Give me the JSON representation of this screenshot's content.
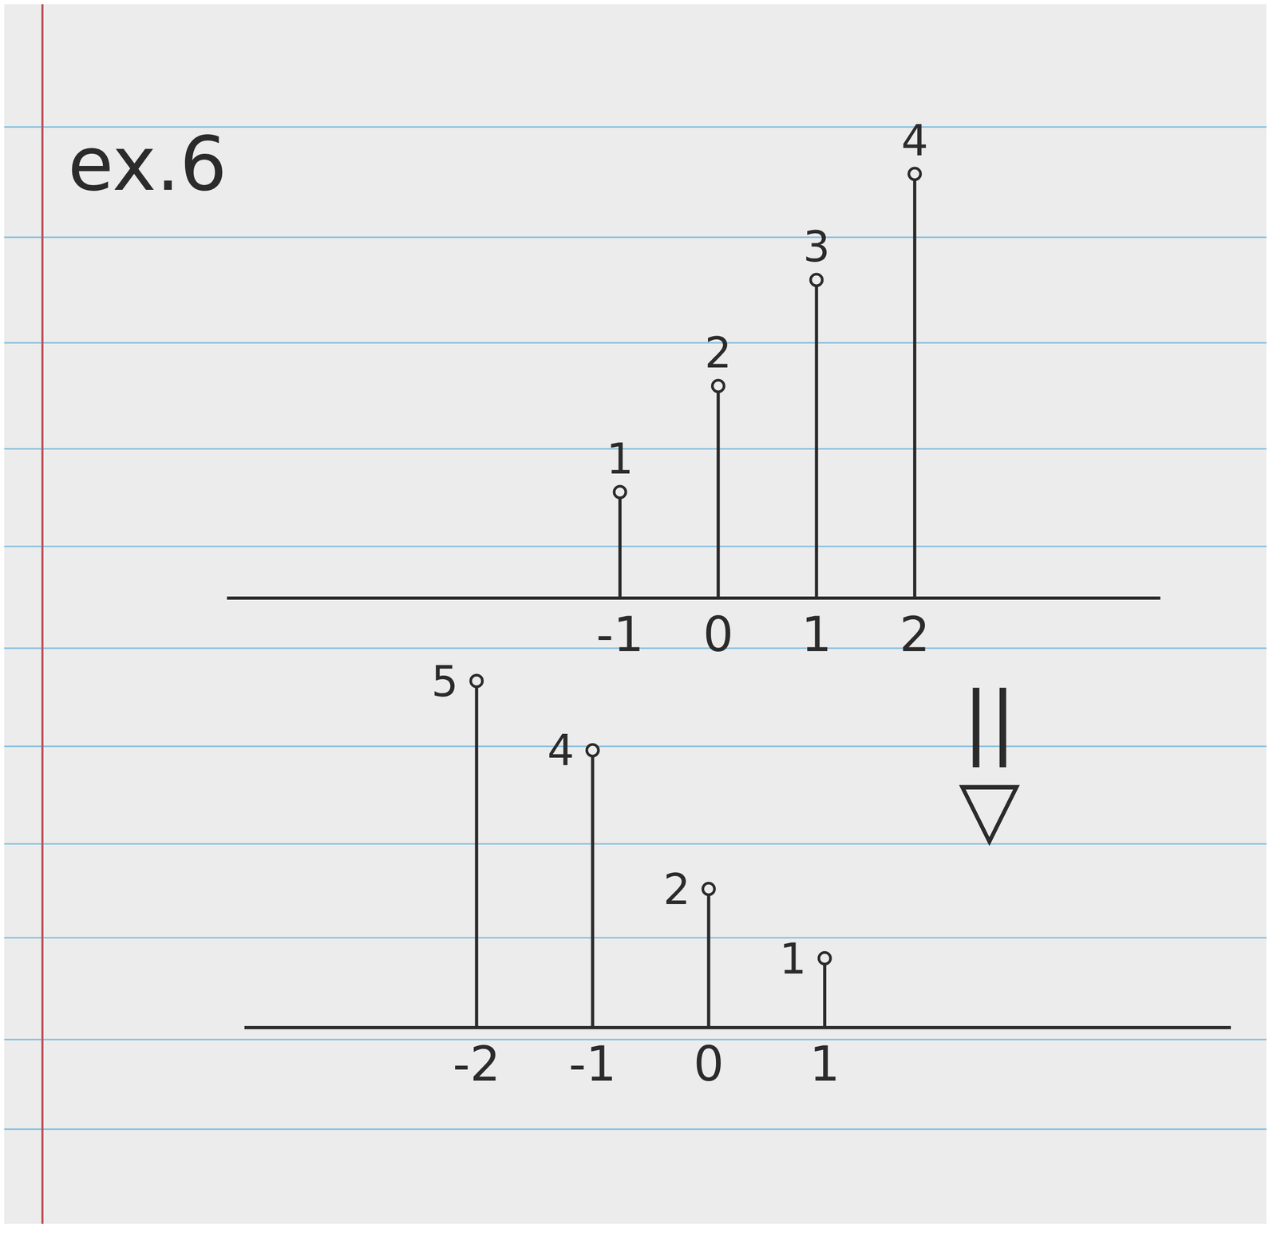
{
  "chart_data": [
    {
      "type": "stem",
      "title": "ex.6",
      "x": [
        -1,
        0,
        1,
        2
      ],
      "values": [
        1,
        2,
        3,
        4
      ],
      "xlim": [
        -5,
        4.5
      ],
      "xticks": [
        -1,
        0,
        1,
        2
      ],
      "ylim": [
        0,
        4.5
      ],
      "data_labels": true,
      "tick_labels": "x",
      "color": "#2b2b2b",
      "marker": "circle"
    },
    {
      "type": "stem",
      "x": [
        -2,
        -1,
        0,
        1
      ],
      "values": [
        5,
        4,
        2,
        1
      ],
      "xlim": [
        -4,
        4.5
      ],
      "xticks": [
        -2,
        -1,
        0,
        1
      ],
      "ylim": [
        0,
        5.2
      ],
      "data_labels": true,
      "tick_labels": "x",
      "color": "#2b2b2b",
      "marker": "circle",
      "annotations": [
        "||",
        "▽"
      ]
    }
  ]
}
